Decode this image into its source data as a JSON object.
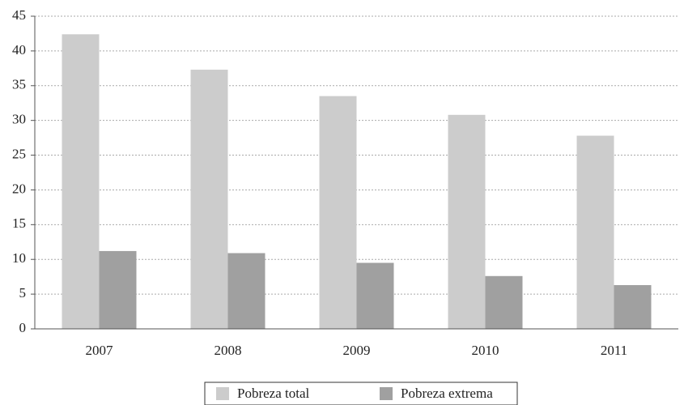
{
  "chart_data": {
    "type": "bar",
    "categories": [
      "2007",
      "2008",
      "2009",
      "2010",
      "2011"
    ],
    "series": [
      {
        "name": "Pobreza total",
        "color": "#cccccc",
        "values": [
          42.4,
          37.3,
          33.5,
          30.8,
          27.8
        ]
      },
      {
        "name": "Pobreza extrema",
        "color": "#a0a0a0",
        "values": [
          11.2,
          10.9,
          9.5,
          7.6,
          6.3
        ]
      }
    ],
    "ylim": [
      0,
      45
    ],
    "yticks": [
      0,
      5,
      10,
      15,
      20,
      25,
      30,
      35,
      40,
      45
    ],
    "grid": true,
    "legend": "bottom"
  }
}
